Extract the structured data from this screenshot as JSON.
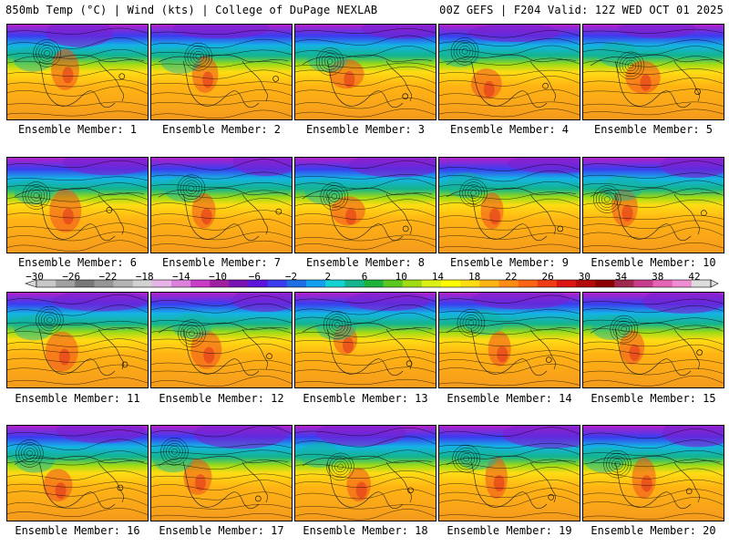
{
  "header": {
    "left": "850mb Temp (°C) | Wind (kts) | College of DuPage NEXLAB",
    "right": "00Z GEFS | F204 Valid: 12Z WED OCT 01 2025"
  },
  "members": [
    {
      "label": "Ensemble Member: 1"
    },
    {
      "label": "Ensemble Member: 2"
    },
    {
      "label": "Ensemble Member: 3"
    },
    {
      "label": "Ensemble Member: 4"
    },
    {
      "label": "Ensemble Member: 5"
    },
    {
      "label": "Ensemble Member: 6"
    },
    {
      "label": "Ensemble Member: 7"
    },
    {
      "label": "Ensemble Member: 8"
    },
    {
      "label": "Ensemble Member: 9"
    },
    {
      "label": "Ensemble Member: 10"
    },
    {
      "label": "Ensemble Member: 11"
    },
    {
      "label": "Ensemble Member: 12"
    },
    {
      "label": "Ensemble Member: 13"
    },
    {
      "label": "Ensemble Member: 14"
    },
    {
      "label": "Ensemble Member: 15"
    },
    {
      "label": "Ensemble Member: 16"
    },
    {
      "label": "Ensemble Member: 17"
    },
    {
      "label": "Ensemble Member: 18"
    },
    {
      "label": "Ensemble Member: 19"
    },
    {
      "label": "Ensemble Member: 20"
    }
  ],
  "colorbar": {
    "ticks": [
      "−30",
      "−26",
      "−22",
      "−18",
      "−14",
      "−10",
      "−6",
      "−2",
      "2",
      "6",
      "10",
      "14",
      "18",
      "22",
      "26",
      "30",
      "34",
      "38",
      "42"
    ],
    "colors": [
      "#c8c8c8",
      "#a0a0a0",
      "#787878",
      "#969696",
      "#b4b4b4",
      "#d2d2d2",
      "#e6b4e6",
      "#dc82dc",
      "#c83cc8",
      "#a01ea0",
      "#7814b4",
      "#5a14dc",
      "#3c3cf0",
      "#1e6ee6",
      "#14a0f0",
      "#14d2d2",
      "#14b48c",
      "#1eb43c",
      "#5ac81e",
      "#a0dc14",
      "#dcf014",
      "#ffff00",
      "#ffdc14",
      "#ffb414",
      "#ff8c14",
      "#ff6414",
      "#f03c14",
      "#dc1414",
      "#b40a0a",
      "#8c0000",
      "#a0284e",
      "#c83c8c",
      "#e664b4",
      "#f08cd2",
      "#dcdcdc"
    ]
  }
}
